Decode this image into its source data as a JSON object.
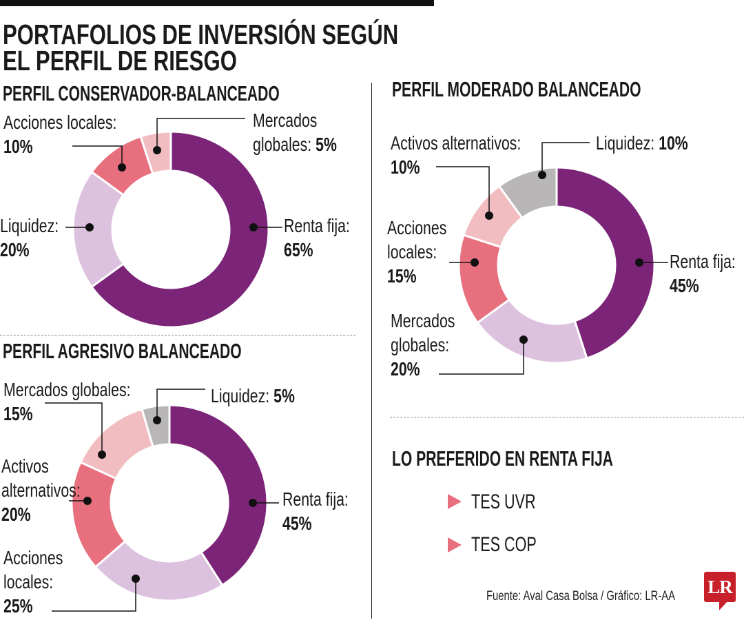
{
  "title_lines": [
    "PORTAFOLIOS DE INVERSIÓN SEGÚN",
    "EL PERFIL DE RIESGO"
  ],
  "colors": {
    "purple": "#7b2478",
    "lilac": "#dcc2de",
    "red": "#e8707e",
    "pink": "#f2bdc1",
    "gray": "#b8b6b6",
    "accent": "#e8707e",
    "logo": "#c8202b"
  },
  "chart_data": [
    {
      "type": "donut",
      "title": "PERFIL CONSERVADOR-BALANCEADO",
      "slices": [
        {
          "label": "Renta fija:",
          "value": 65,
          "display": "65%",
          "color": "#7b2478"
        },
        {
          "label": "Liquidez:",
          "value": 20,
          "display": "20%",
          "color": "#dcc2de"
        },
        {
          "label": "Acciones locales:",
          "value": 10,
          "display": "10%",
          "color": "#e8707e"
        },
        {
          "label": "Mercados globales:",
          "label_lines": [
            "Mercados",
            "globales:"
          ],
          "value": 5,
          "display": "5%",
          "color": "#f2bdc1"
        }
      ]
    },
    {
      "type": "donut",
      "title": "PERFIL MODERADO BALANCEADO",
      "slices": [
        {
          "label": "Renta fija:",
          "value": 45,
          "display": "45%",
          "color": "#7b2478"
        },
        {
          "label": "Mercados globales:",
          "label_lines": [
            "Mercados",
            "globales:"
          ],
          "value": 20,
          "display": "20%",
          "color": "#dcc2de"
        },
        {
          "label": "Acciones locales:",
          "label_lines": [
            "Acciones",
            "locales:"
          ],
          "value": 15,
          "display": "15%",
          "color": "#e8707e"
        },
        {
          "label": "Activos alternativos:",
          "value": 10,
          "display": "10%",
          "color": "#f2bdc1"
        },
        {
          "label": "Liquidez:",
          "value": 10,
          "display": "10%",
          "color": "#b8b6b6"
        }
      ]
    },
    {
      "type": "donut",
      "title": "PERFIL AGRESIVO BALANCEADO",
      "slices": [
        {
          "label": "Renta fija:",
          "value": 45,
          "display": "45%",
          "color": "#7b2478"
        },
        {
          "label": "Acciones locales:",
          "label_lines": [
            "Acciones",
            "locales:"
          ],
          "value": 25,
          "display": "25%",
          "color": "#dcc2de"
        },
        {
          "label": "Activos alternativos:",
          "label_lines": [
            "Activos",
            "alternativos:"
          ],
          "value": 20,
          "display": "20%",
          "color": "#e8707e"
        },
        {
          "label": "Mercados globales:",
          "value": 15,
          "display": "15%",
          "color": "#f2bdc1"
        },
        {
          "label": "Liquidez:",
          "value": 5,
          "display": "5%",
          "color": "#b8b6b6"
        }
      ]
    }
  ],
  "preferred": {
    "title": "LO PREFERIDO EN RENTA FIJA",
    "items": [
      "TES UVR",
      "TES COP"
    ],
    "bullet_icon": "triangle-right"
  },
  "source": "Fuente: Aval Casa Bolsa / Gráfico: LR-AA",
  "logo_text": "LR"
}
